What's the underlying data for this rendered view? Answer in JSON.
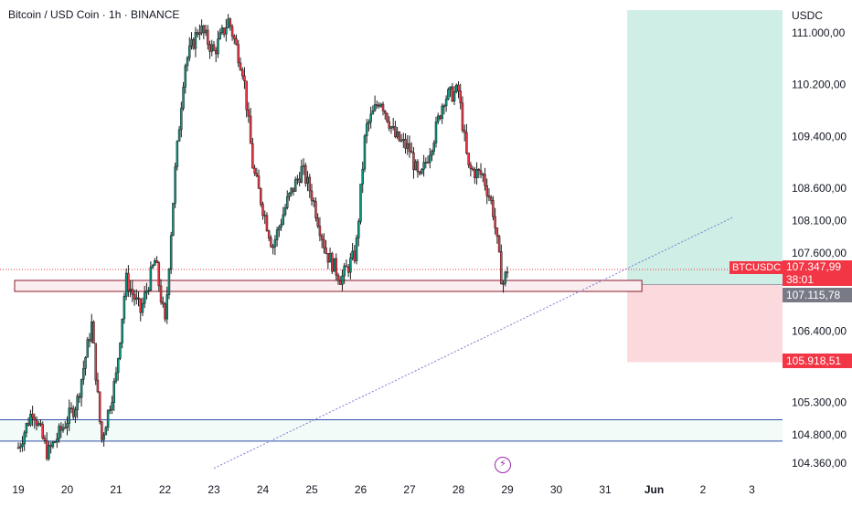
{
  "header": {
    "title": "Bitcoin / USD Coin · 1h · BINANCE"
  },
  "axis": {
    "currency": "USDC"
  },
  "colors": {
    "up": "#089981",
    "down": "#f23645",
    "candle": "#1e1e1e",
    "tp_zone": "#cfeee6",
    "sl_zone": "#fbd9dc",
    "support_fill": "#fbeef0",
    "support_border": "#8b1a2b",
    "blue_line": "#2e4ea8",
    "trend": "#7a7ad0",
    "label_red": "#f23645",
    "label_gray": "#787b86",
    "event_icon": "#9c27b0"
  },
  "symbol_tag": {
    "label": "BTCUSDC",
    "price": "107.347,99",
    "countdown": "38:01"
  },
  "entry_tag": {
    "price": "107.115,78"
  },
  "stop_tag": {
    "price": "105.918,51"
  },
  "event_icon": "lightning-icon",
  "chart_data": {
    "type": "candlestick",
    "title": "Bitcoin / USD Coin · 1h · BINANCE",
    "currency": "USDC",
    "y_ticks": [
      {
        "label": "111.000,00",
        "value": 111000
      },
      {
        "label": "110.200,00",
        "value": 110200
      },
      {
        "label": "109.400,00",
        "value": 109400
      },
      {
        "label": "108.600,00",
        "value": 108600
      },
      {
        "label": "108.100,00",
        "value": 108100
      },
      {
        "label": "107.600,00",
        "value": 107600
      },
      {
        "label": "106.400,00",
        "value": 106400
      },
      {
        "label": "105.300,00",
        "value": 105300
      },
      {
        "label": "104.800,00",
        "value": 104800
      },
      {
        "label": "104.360,00",
        "value": 104360
      }
    ],
    "x_ticks": [
      "19",
      "20",
      "21",
      "22",
      "23",
      "24",
      "25",
      "26",
      "27",
      "28",
      "29",
      "30",
      "31",
      "Jun",
      "2",
      "3"
    ],
    "price_path": [
      {
        "day": 19.0,
        "price": 104600
      },
      {
        "day": 19.3,
        "price": 105200
      },
      {
        "day": 19.6,
        "price": 104500
      },
      {
        "day": 19.9,
        "price": 104900
      },
      {
        "day": 20.2,
        "price": 105300
      },
      {
        "day": 20.5,
        "price": 106500
      },
      {
        "day": 20.7,
        "price": 104700
      },
      {
        "day": 21.0,
        "price": 105700
      },
      {
        "day": 21.2,
        "price": 107200
      },
      {
        "day": 21.5,
        "price": 106700
      },
      {
        "day": 21.8,
        "price": 107500
      },
      {
        "day": 22.0,
        "price": 106500
      },
      {
        "day": 22.2,
        "price": 108800
      },
      {
        "day": 22.4,
        "price": 110500
      },
      {
        "day": 22.7,
        "price": 111100
      },
      {
        "day": 23.0,
        "price": 110700
      },
      {
        "day": 23.3,
        "price": 111200
      },
      {
        "day": 23.6,
        "price": 110400
      },
      {
        "day": 23.8,
        "price": 108900
      },
      {
        "day": 24.0,
        "price": 108300
      },
      {
        "day": 24.2,
        "price": 107700
      },
      {
        "day": 24.5,
        "price": 108400
      },
      {
        "day": 24.8,
        "price": 108900
      },
      {
        "day": 25.0,
        "price": 108500
      },
      {
        "day": 25.3,
        "price": 107600
      },
      {
        "day": 25.6,
        "price": 107200
      },
      {
        "day": 25.9,
        "price": 107600
      },
      {
        "day": 26.1,
        "price": 109500
      },
      {
        "day": 26.4,
        "price": 110000
      },
      {
        "day": 26.7,
        "price": 109400
      },
      {
        "day": 27.0,
        "price": 109200
      },
      {
        "day": 27.2,
        "price": 108700
      },
      {
        "day": 27.5,
        "price": 109400
      },
      {
        "day": 27.7,
        "price": 110000
      },
      {
        "day": 28.0,
        "price": 110100
      },
      {
        "day": 28.2,
        "price": 108900
      },
      {
        "day": 28.5,
        "price": 108800
      },
      {
        "day": 28.7,
        "price": 108300
      },
      {
        "day": 28.9,
        "price": 107100
      },
      {
        "day": 29.0,
        "price": 107348
      }
    ],
    "price_line": 107347.99,
    "support_zone": {
      "from_day": 19.0,
      "to_day": 31.75,
      "low": 107010,
      "high": 107180
    },
    "horizontal_lines": [
      105030,
      104700
    ],
    "highlight_band": {
      "low": 104700,
      "high": 105030
    },
    "trendline": {
      "from": {
        "day": 23.0,
        "price": 104280
      },
      "to": {
        "day": 33.6,
        "price": 108150
      }
    },
    "position": {
      "start_day": 31.45,
      "end_day": 35.3,
      "entry": 107115.78,
      "target": 111350,
      "stop": 105918.51
    }
  }
}
